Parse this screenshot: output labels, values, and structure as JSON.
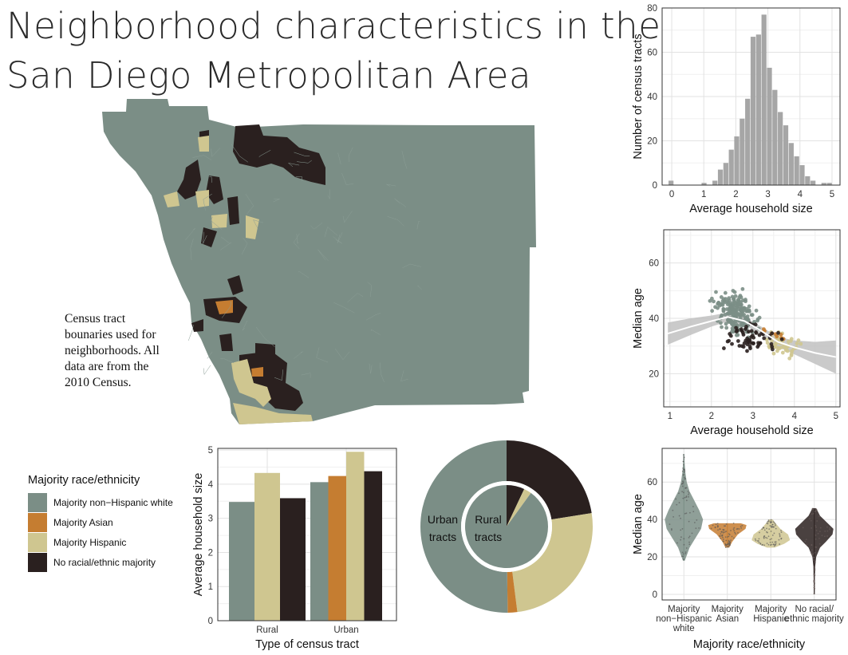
{
  "title": {
    "line1": "Neighborhood characteristics in the",
    "line2": "San Diego Metropolitan Area"
  },
  "map_note": "Census tract bounaries used for neighborhoods. All data are from the 2010 Census.",
  "colors": {
    "white": "#7b8e86",
    "asian": "#c57d31",
    "hispanic": "#cfc690",
    "none": "#2a201f",
    "hist": "#a6a6a6"
  },
  "legend": {
    "title": "Majority race/ethnicity",
    "items": [
      {
        "label": "Majority non−Hispanic white",
        "color": "#7b8e86"
      },
      {
        "label": "Majority Asian",
        "color": "#c57d31"
      },
      {
        "label": "Majority Hispanic",
        "color": "#cfc690"
      },
      {
        "label": "No racial/ethnic majority",
        "color": "#2a201f"
      }
    ]
  },
  "chart_data": [
    {
      "id": "histogram",
      "type": "bar",
      "xlabel": "Average household size",
      "ylabel": "Number of census tracts",
      "xlim": [
        -0.3,
        5.25
      ],
      "ylim": [
        0,
        80
      ],
      "xticks": [
        0,
        1,
        2,
        3,
        4,
        5
      ],
      "yticks": [
        0,
        20,
        40,
        60,
        80
      ],
      "bin_width": 0.17,
      "bins": [
        {
          "x0": -0.1,
          "count": 2
        },
        {
          "x0": 0.93,
          "count": 1
        },
        {
          "x0": 1.27,
          "count": 2
        },
        {
          "x0": 1.44,
          "count": 7
        },
        {
          "x0": 1.61,
          "count": 10
        },
        {
          "x0": 1.78,
          "count": 16
        },
        {
          "x0": 1.95,
          "count": 22
        },
        {
          "x0": 2.12,
          "count": 30
        },
        {
          "x0": 2.29,
          "count": 39
        },
        {
          "x0": 2.46,
          "count": 67
        },
        {
          "x0": 2.63,
          "count": 68
        },
        {
          "x0": 2.8,
          "count": 77
        },
        {
          "x0": 2.97,
          "count": 53
        },
        {
          "x0": 3.14,
          "count": 43
        },
        {
          "x0": 3.31,
          "count": 33
        },
        {
          "x0": 3.48,
          "count": 27
        },
        {
          "x0": 3.65,
          "count": 19
        },
        {
          "x0": 3.82,
          "count": 13
        },
        {
          "x0": 3.99,
          "count": 9
        },
        {
          "x0": 4.16,
          "count": 4
        },
        {
          "x0": 4.33,
          "count": 2
        },
        {
          "x0": 4.67,
          "count": 1
        },
        {
          "x0": 4.84,
          "count": 1
        }
      ]
    },
    {
      "id": "scatter",
      "type": "scatter",
      "xlabel": "Average household size",
      "ylabel": "Median age",
      "xlim": [
        0.85,
        5.1
      ],
      "ylim": [
        8,
        72
      ],
      "xticks": [
        1,
        2,
        3,
        4,
        5
      ],
      "yticks": [
        20,
        40,
        60
      ],
      "smooth": [
        [
          0.95,
          34.5
        ],
        [
          1.5,
          37
        ],
        [
          2.0,
          39
        ],
        [
          2.4,
          40.5
        ],
        [
          2.8,
          39
        ],
        [
          3.2,
          35.5
        ],
        [
          3.6,
          31.5
        ],
        [
          4.0,
          29.5
        ],
        [
          4.5,
          27.5
        ],
        [
          5.0,
          26
        ]
      ],
      "smooth_band_width": [
        4,
        3,
        2,
        1.6,
        1.4,
        1.5,
        1.8,
        2.5,
        4,
        6
      ]
    },
    {
      "id": "bars",
      "type": "bar",
      "xlabel": "Type of census tract",
      "ylabel": "Average household size",
      "categories": [
        "Rural",
        "Urban"
      ],
      "ylim": [
        0,
        5.05
      ],
      "yticks": [
        0,
        1,
        2,
        3,
        4,
        5
      ],
      "series": [
        {
          "name": "Majority non−Hispanic white",
          "values": [
            3.48,
            4.06
          ]
        },
        {
          "name": "Majority Asian",
          "values": [
            0,
            4.24
          ]
        },
        {
          "name": "Majority Hispanic",
          "values": [
            4.33,
            4.95
          ]
        },
        {
          "name": "No racial/ethnic majority",
          "values": [
            3.59,
            4.38
          ]
        }
      ]
    },
    {
      "id": "donut",
      "type": "pie",
      "outer_label": "Urban tracts",
      "inner_label": "Rural tracts",
      "outer": [
        {
          "name": "No racial/ethnic majority",
          "value": 0.225
        },
        {
          "name": "Majority Hispanic",
          "value": 0.255
        },
        {
          "name": "Majority Asian",
          "value": 0.018
        },
        {
          "name": "Majority non−Hispanic white",
          "value": 0.502
        }
      ],
      "inner": [
        {
          "name": "No racial/ethnic majority",
          "value": 0.07
        },
        {
          "name": "Majority Hispanic",
          "value": 0.03
        },
        {
          "name": "Majority non−Hispanic white",
          "value": 0.9
        }
      ]
    },
    {
      "id": "violin",
      "type": "violin",
      "xlabel": "Majority race/ethnicity",
      "ylabel": "Median age",
      "categories": [
        "Majority\nnon−Hispanic\nwhite",
        "Majority\nAsian",
        "Majority\nHispanic",
        "No racial/\nethnic majority"
      ],
      "ylim": [
        -3,
        78
      ],
      "yticks": [
        0,
        20,
        40,
        60
      ],
      "groups": [
        {
          "name": "Majority non−Hispanic white",
          "min": 18,
          "max": 75,
          "profile": [
            [
              18,
              0.05
            ],
            [
              25,
              0.3
            ],
            [
              30,
              0.6
            ],
            [
              35,
              0.9
            ],
            [
              40,
              1.0
            ],
            [
              45,
              0.8
            ],
            [
              50,
              0.55
            ],
            [
              55,
              0.3
            ],
            [
              60,
              0.15
            ],
            [
              65,
              0.08
            ],
            [
              70,
              0.04
            ],
            [
              75,
              0.02
            ]
          ]
        },
        {
          "name": "Majority Asian",
          "min": 25,
          "max": 38,
          "profile": [
            [
              25,
              0.1
            ],
            [
              28,
              0.25
            ],
            [
              32,
              0.55
            ],
            [
              35,
              0.95
            ],
            [
              37,
              1.0
            ],
            [
              38,
              0.7
            ]
          ]
        },
        {
          "name": "Majority Hispanic",
          "min": 25,
          "max": 40,
          "profile": [
            [
              25,
              0.2
            ],
            [
              27,
              0.7
            ],
            [
              29,
              1.0
            ],
            [
              32,
              0.9
            ],
            [
              35,
              0.5
            ],
            [
              38,
              0.25
            ],
            [
              40,
              0.1
            ]
          ]
        },
        {
          "name": "No racial/ethnic majority",
          "min": 0,
          "max": 46,
          "profile": [
            [
              0,
              0.02
            ],
            [
              8,
              0.03
            ],
            [
              15,
              0.05
            ],
            [
              20,
              0.1
            ],
            [
              25,
              0.3
            ],
            [
              28,
              0.6
            ],
            [
              32,
              0.95
            ],
            [
              35,
              1.0
            ],
            [
              38,
              0.7
            ],
            [
              42,
              0.3
            ],
            [
              46,
              0.1
            ]
          ]
        }
      ]
    }
  ]
}
